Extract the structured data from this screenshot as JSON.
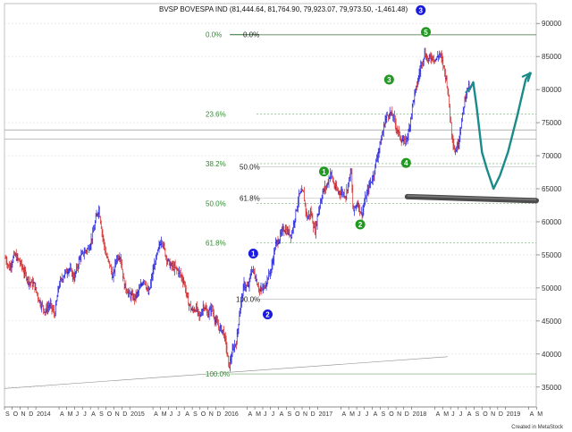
{
  "chart_data": {
    "type": "candlestick",
    "title": "BVSP BOVESPA IND (81,444.64, 81,764.90, 79,923.07, 79,973.50, -1,461.48)",
    "ylim": [
      32000,
      93000
    ],
    "y_ticks": [
      35000,
      40000,
      45000,
      50000,
      55000,
      60000,
      65000,
      70000,
      75000,
      80000,
      85000,
      90000
    ],
    "y_tick_labels": [
      "35000",
      "40000",
      "45000",
      "50000",
      "55000",
      "60000",
      "65000",
      "70000",
      "75000",
      "80000",
      "85000",
      "90000"
    ],
    "x_range": [
      "2013-09-01",
      "2019-04-30"
    ],
    "x_ticks": [
      {
        "label": "S",
        "date": "2013-09-01"
      },
      {
        "label": "O",
        "date": "2013-10-01"
      },
      {
        "label": "N",
        "date": "2013-11-01"
      },
      {
        "label": "D",
        "date": "2013-12-01"
      },
      {
        "label": "2014",
        "date": "2014-01-01"
      },
      {
        "label": "A",
        "date": "2014-04-01"
      },
      {
        "label": "M",
        "date": "2014-05-01"
      },
      {
        "label": "J",
        "date": "2014-06-01"
      },
      {
        "label": "J",
        "date": "2014-07-01"
      },
      {
        "label": "A",
        "date": "2014-08-01"
      },
      {
        "label": "S",
        "date": "2014-09-01"
      },
      {
        "label": "O",
        "date": "2014-10-01"
      },
      {
        "label": "N",
        "date": "2014-11-01"
      },
      {
        "label": "D",
        "date": "2014-12-01"
      },
      {
        "label": "2015",
        "date": "2015-01-01"
      },
      {
        "label": "A",
        "date": "2015-04-01"
      },
      {
        "label": "M",
        "date": "2015-05-01"
      },
      {
        "label": "J",
        "date": "2015-06-01"
      },
      {
        "label": "J",
        "date": "2015-07-01"
      },
      {
        "label": "A",
        "date": "2015-08-01"
      },
      {
        "label": "S",
        "date": "2015-09-01"
      },
      {
        "label": "O",
        "date": "2015-10-01"
      },
      {
        "label": "N",
        "date": "2015-11-01"
      },
      {
        "label": "D",
        "date": "2015-12-01"
      },
      {
        "label": "2016",
        "date": "2016-01-01"
      },
      {
        "label": "A",
        "date": "2016-04-01"
      },
      {
        "label": "M",
        "date": "2016-05-01"
      },
      {
        "label": "J",
        "date": "2016-06-01"
      },
      {
        "label": "J",
        "date": "2016-07-01"
      },
      {
        "label": "A",
        "date": "2016-08-01"
      },
      {
        "label": "S",
        "date": "2016-09-01"
      },
      {
        "label": "O",
        "date": "2016-10-01"
      },
      {
        "label": "N",
        "date": "2016-11-01"
      },
      {
        "label": "D",
        "date": "2016-12-01"
      },
      {
        "label": "2017",
        "date": "2017-01-01"
      },
      {
        "label": "A",
        "date": "2017-04-01"
      },
      {
        "label": "M",
        "date": "2017-05-01"
      },
      {
        "label": "J",
        "date": "2017-06-01"
      },
      {
        "label": "J",
        "date": "2017-07-01"
      },
      {
        "label": "A",
        "date": "2017-08-01"
      },
      {
        "label": "S",
        "date": "2017-09-01"
      },
      {
        "label": "O",
        "date": "2017-10-01"
      },
      {
        "label": "N",
        "date": "2017-11-01"
      },
      {
        "label": "D",
        "date": "2017-12-01"
      },
      {
        "label": "2018",
        "date": "2018-01-01"
      },
      {
        "label": "A",
        "date": "2018-04-01"
      },
      {
        "label": "M",
        "date": "2018-05-01"
      },
      {
        "label": "J",
        "date": "2018-06-01"
      },
      {
        "label": "J",
        "date": "2018-07-01"
      },
      {
        "label": "A",
        "date": "2018-08-01"
      },
      {
        "label": "S",
        "date": "2018-09-01"
      },
      {
        "label": "O",
        "date": "2018-10-01"
      },
      {
        "label": "N",
        "date": "2018-11-01"
      },
      {
        "label": "D",
        "date": "2018-12-01"
      },
      {
        "label": "2019",
        "date": "2019-01-01"
      },
      {
        "label": "A",
        "date": "2019-04-01"
      },
      {
        "label": "M",
        "date": "2019-05-01"
      }
    ],
    "close_path": [
      [
        "2013-09-05",
        54500
      ],
      [
        "2013-09-20",
        53000
      ],
      [
        "2013-10-10",
        55000
      ],
      [
        "2013-10-30",
        54000
      ],
      [
        "2013-11-15",
        52500
      ],
      [
        "2013-12-05",
        51000
      ],
      [
        "2013-12-25",
        50500
      ],
      [
        "2014-01-15",
        48000
      ],
      [
        "2014-02-05",
        46500
      ],
      [
        "2014-02-25",
        47500
      ],
      [
        "2014-03-15",
        46000
      ],
      [
        "2014-04-01",
        50500
      ],
      [
        "2014-04-20",
        52000
      ],
      [
        "2014-05-10",
        53000
      ],
      [
        "2014-05-30",
        51500
      ],
      [
        "2014-06-20",
        54500
      ],
      [
        "2014-07-10",
        55500
      ],
      [
        "2014-07-25",
        56000
      ],
      [
        "2014-08-10",
        58000
      ],
      [
        "2014-08-25",
        61000
      ],
      [
        "2014-09-03",
        62000
      ],
      [
        "2014-09-15",
        58500
      ],
      [
        "2014-09-30",
        55000
      ],
      [
        "2014-10-15",
        53500
      ],
      [
        "2014-10-27",
        51500
      ],
      [
        "2014-11-10",
        54500
      ],
      [
        "2014-11-25",
        55000
      ],
      [
        "2014-12-10",
        50500
      ],
      [
        "2014-12-30",
        49000
      ],
      [
        "2015-01-20",
        48500
      ],
      [
        "2015-02-05",
        49500
      ],
      [
        "2015-02-25",
        51500
      ],
      [
        "2015-03-15",
        49000
      ],
      [
        "2015-04-01",
        52500
      ],
      [
        "2015-04-20",
        55500
      ],
      [
        "2015-05-05",
        57500
      ],
      [
        "2015-05-20",
        55000
      ],
      [
        "2015-06-05",
        53500
      ],
      [
        "2015-06-25",
        53000
      ],
      [
        "2015-07-10",
        52500
      ],
      [
        "2015-07-30",
        51000
      ],
      [
        "2015-08-15",
        48000
      ],
      [
        "2015-08-31",
        46500
      ],
      [
        "2015-09-15",
        47000
      ],
      [
        "2015-09-30",
        45500
      ],
      [
        "2015-10-15",
        47500
      ],
      [
        "2015-10-30",
        46000
      ],
      [
        "2015-11-15",
        47000
      ],
      [
        "2015-11-30",
        45000
      ],
      [
        "2015-12-15",
        44000
      ],
      [
        "2015-12-30",
        43500
      ],
      [
        "2016-01-10",
        41500
      ],
      [
        "2016-01-21",
        38000
      ],
      [
        "2016-02-05",
        40500
      ],
      [
        "2016-02-20",
        42000
      ],
      [
        "2016-03-05",
        47000
      ],
      [
        "2016-03-20",
        50500
      ],
      [
        "2016-04-05",
        50000
      ],
      [
        "2016-04-20",
        53000
      ],
      [
        "2016-05-05",
        51500
      ],
      [
        "2016-05-20",
        49500
      ],
      [
        "2016-06-05",
        50000
      ],
      [
        "2016-06-20",
        51500
      ],
      [
        "2016-07-05",
        53000
      ],
      [
        "2016-07-20",
        56500
      ],
      [
        "2016-08-05",
        57500
      ],
      [
        "2016-08-20",
        59000
      ],
      [
        "2016-09-05",
        58500
      ],
      [
        "2016-09-20",
        58000
      ],
      [
        "2016-10-05",
        61000
      ],
      [
        "2016-10-20",
        64000
      ],
      [
        "2016-11-05",
        64500
      ],
      [
        "2016-11-20",
        60500
      ],
      [
        "2016-12-05",
        61500
      ],
      [
        "2016-12-20",
        58500
      ],
      [
        "2017-01-05",
        62000
      ],
      [
        "2017-01-20",
        64500
      ],
      [
        "2017-02-05",
        65500
      ],
      [
        "2017-02-20",
        67500
      ],
      [
        "2017-03-05",
        65500
      ],
      [
        "2017-03-20",
        64500
      ],
      [
        "2017-04-05",
        64500
      ],
      [
        "2017-04-20",
        64000
      ],
      [
        "2017-05-10",
        68000
      ],
      [
        "2017-05-18",
        61500
      ],
      [
        "2017-06-05",
        63000
      ],
      [
        "2017-06-20",
        61000
      ],
      [
        "2017-07-05",
        63500
      ],
      [
        "2017-07-20",
        65500
      ],
      [
        "2017-08-05",
        67000
      ],
      [
        "2017-08-20",
        70000
      ],
      [
        "2017-09-05",
        72500
      ],
      [
        "2017-09-20",
        75500
      ],
      [
        "2017-10-05",
        76500
      ],
      [
        "2017-10-20",
        76000
      ],
      [
        "2017-11-05",
        74000
      ],
      [
        "2017-11-20",
        72500
      ],
      [
        "2017-12-05",
        72000
      ],
      [
        "2017-12-20",
        73500
      ],
      [
        "2018-01-05",
        78000
      ],
      [
        "2018-01-20",
        80500
      ],
      [
        "2018-02-05",
        83500
      ],
      [
        "2018-02-20",
        85500
      ],
      [
        "2018-03-05",
        84500
      ],
      [
        "2018-03-20",
        85000
      ],
      [
        "2018-04-05",
        84500
      ],
      [
        "2018-04-20",
        85500
      ],
      [
        "2018-05-05",
        83500
      ],
      [
        "2018-05-20",
        80500
      ],
      [
        "2018-06-05",
        73500
      ],
      [
        "2018-06-18",
        70500
      ],
      [
        "2018-07-01",
        72000
      ],
      [
        "2018-07-15",
        75500
      ],
      [
        "2018-07-28",
        79000
      ],
      [
        "2018-08-08",
        80500
      ],
      [
        "2018-08-14",
        79973.5
      ]
    ],
    "fibonacci_left": [
      {
        "label": "0.0%",
        "value": 88300
      },
      {
        "label": "23.6%",
        "value": 76300
      },
      {
        "label": "38.2%",
        "value": 68800
      },
      {
        "label": "50.0%",
        "value": 62800
      },
      {
        "label": "61.8%",
        "value": 56800
      },
      {
        "label": "100.0%",
        "value": 37000
      }
    ],
    "fibonacci_right": [
      {
        "label": "0.0%",
        "value": 88300
      },
      {
        "label": "50.0%",
        "value": 68300
      },
      {
        "label": "61.8%",
        "value": 63600
      },
      {
        "label": "100.0%",
        "value": 48300
      }
    ],
    "horizontal_lines": [
      73900,
      72500
    ],
    "wave_labels": [
      {
        "label": "1",
        "color": "#1a1adf",
        "date": "2016-04-25",
        "value": 55200
      },
      {
        "label": "2",
        "color": "#1a1adf",
        "date": "2016-06-20",
        "value": 46000
      },
      {
        "label": "3",
        "color": "#1a1adf",
        "date": "2018-02-05",
        "value": 92000
      },
      {
        "label": "1",
        "color": "#229922",
        "date": "2017-01-25",
        "value": 67600
      },
      {
        "label": "2",
        "color": "#229922",
        "date": "2017-06-15",
        "value": 59600
      },
      {
        "label": "3",
        "color": "#229922",
        "date": "2017-10-05",
        "value": 81500
      },
      {
        "label": "4",
        "color": "#229922",
        "date": "2017-12-10",
        "value": 68900
      },
      {
        "label": "5",
        "color": "#229922",
        "date": "2018-02-25",
        "value": 88700
      }
    ],
    "support_zone": {
      "date_start": "2017-12-15",
      "date_end": "2019-04-30",
      "value_start": 63800,
      "value_end": 63200
    },
    "projection": [
      [
        "2018-08-14",
        80000
      ],
      [
        "2018-08-28",
        81100
      ],
      [
        "2018-09-10",
        77500
      ],
      [
        "2018-10-01",
        70500
      ],
      [
        "2018-10-20",
        68000
      ],
      [
        "2018-11-15",
        65000
      ],
      [
        "2018-12-10",
        67000
      ],
      [
        "2019-01-10",
        70500
      ],
      [
        "2019-02-15",
        76000
      ],
      [
        "2019-03-20",
        81500
      ],
      [
        "2019-04-05",
        82500
      ]
    ],
    "trendline": [
      [
        "2013-09-01",
        34800
      ],
      [
        "2018-05-20",
        39600
      ]
    ]
  },
  "footer": {
    "credit": "Created in MetaStock"
  },
  "colors": {
    "up": "#1a1adf",
    "down": "#d42020",
    "fib_green": "#2e8b2e",
    "projection": "#1b8a8a",
    "support": "#555555"
  }
}
